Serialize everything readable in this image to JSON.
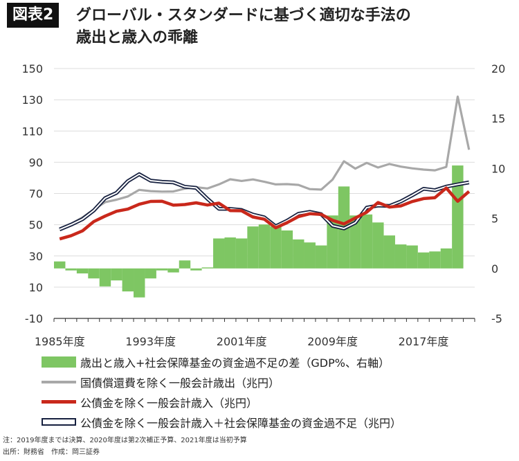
{
  "header": {
    "figure_label": "図表2",
    "title_line1": "グローバル・スタンダードに基づく適切な手法の",
    "title_line2": "歳出と歳入の乖離"
  },
  "colors": {
    "bars": "#7ec663",
    "expenditure": "#a8a8a8",
    "revenue": "#c9281b",
    "revenue_plus_ss": "#16203f"
  },
  "chart_data": {
    "type": "bar+line",
    "left_axis": {
      "min": -10,
      "max": 150,
      "ticks": [
        -10,
        10,
        30,
        50,
        70,
        90,
        110,
        130,
        150
      ]
    },
    "right_axis": {
      "min": -5,
      "max": 20,
      "ticks": [
        -5,
        0,
        5,
        10,
        15,
        20
      ]
    },
    "x_tick_labels": [
      {
        "year": 1985,
        "label": "1985年度"
      },
      {
        "year": 1993,
        "label": "1993年度"
      },
      {
        "year": 2001,
        "label": "2001年度"
      },
      {
        "year": 2009,
        "label": "2009年度"
      },
      {
        "year": 2017,
        "label": "2017年度"
      }
    ],
    "years": [
      1985,
      1986,
      1987,
      1988,
      1989,
      1990,
      1991,
      1992,
      1993,
      1994,
      1995,
      1996,
      1997,
      1998,
      1999,
      2000,
      2001,
      2002,
      2003,
      2004,
      2005,
      2006,
      2007,
      2008,
      2009,
      2010,
      2011,
      2012,
      2013,
      2014,
      2015,
      2016,
      2017,
      2018,
      2019,
      2020,
      2021
    ],
    "series": [
      {
        "name": "歳出と歳入+社会保障基金の資金過不足の差（GDP%、右軸）",
        "kind": "bar",
        "axis": "right",
        "values": [
          0.7,
          -0.2,
          -0.5,
          -1.0,
          -1.8,
          -1.2,
          -2.3,
          -2.9,
          -1.0,
          -0.2,
          -0.4,
          0.8,
          -0.2,
          0.1,
          3.0,
          3.1,
          3.0,
          4.2,
          4.4,
          4.2,
          3.8,
          2.9,
          2.6,
          2.3,
          5.3,
          8.2,
          5.3,
          5.4,
          4.6,
          3.3,
          2.4,
          2.3,
          1.6,
          1.7,
          2.0,
          10.3,
          null
        ]
      },
      {
        "name": "国債償還費を除く一般会計歳出（兆円）",
        "kind": "line",
        "axis": "left",
        "values": [
          46.4,
          50.5,
          54.6,
          59.7,
          64.4,
          66.0,
          68.1,
          72.3,
          71.5,
          71.2,
          71.3,
          73.1,
          74.0,
          73.2,
          75.8,
          79.1,
          78.0,
          79.0,
          77.5,
          75.8,
          76.0,
          75.5,
          72.8,
          72.5,
          78.9,
          90.6,
          85.9,
          89.6,
          86.6,
          88.9,
          87.2,
          86.1,
          85.3,
          84.8,
          87.0,
          132.0,
          98.0
        ]
      },
      {
        "name": "公債金を除く一般会計歳入（兆円）",
        "kind": "line",
        "axis": "left",
        "values": [
          40.9,
          42.9,
          46.0,
          52.0,
          55.5,
          58.6,
          60.0,
          63.1,
          64.9,
          65.0,
          62.5,
          62.9,
          64.0,
          62.6,
          63.8,
          59.0,
          58.9,
          54.9,
          53.5,
          48.0,
          51.3,
          55.2,
          57.0,
          56.6,
          52.8,
          50.5,
          54.3,
          58.0,
          64.2,
          61.3,
          62.0,
          64.8,
          66.7,
          67.3,
          73.5,
          65.0,
          71.3
        ]
      },
      {
        "name": "公債金を除く一般会計歳入＋社会保障基金の資金過不足（兆円）",
        "kind": "line",
        "axis": "left",
        "values": [
          47.0,
          50.0,
          53.5,
          59.1,
          67.0,
          70.4,
          77.9,
          82.3,
          78.2,
          77.5,
          77.1,
          74.3,
          73.6,
          66.6,
          60.2,
          60.1,
          59.4,
          56.5,
          54.7,
          49.0,
          52.6,
          57.0,
          58.2,
          56.7,
          49.3,
          47.6,
          51.3,
          60.9,
          62.3,
          62.0,
          64.9,
          68.8,
          73.0,
          72.1,
          74.4,
          75.8,
          77.1
        ]
      }
    ],
    "grid": true
  },
  "legend": [
    {
      "key": "bars",
      "label": "歳出と歳入+社会保障基金の資金過不足の差（GDP%、右軸）"
    },
    {
      "key": "expenditure",
      "label": "国債償還費を除く一般会計歳出（兆円）"
    },
    {
      "key": "revenue",
      "label": "公債金を除く一般会計歳入（兆円）"
    },
    {
      "key": "revenue_plus_ss",
      "label": "公債金を除く一般会計歳入＋社会保障基金の資金過不足（兆円）"
    }
  ],
  "notes": {
    "note": "注：2019年度までは決算、2020年度は第2次補正予算、2021年度は当初予算",
    "source": "出所：財務省　作成：岡三証券"
  }
}
